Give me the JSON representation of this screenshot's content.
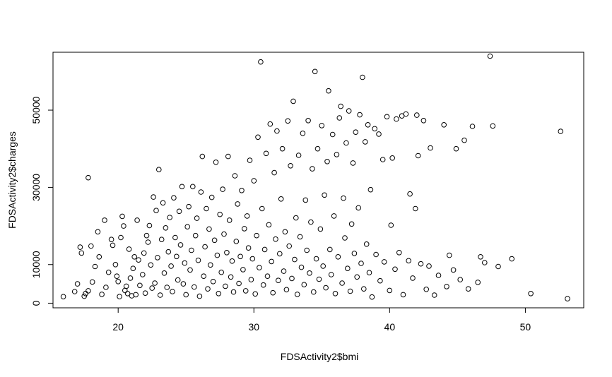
{
  "chart_data": {
    "type": "scatter",
    "title": "",
    "xlabel": "FDSActivity2$bmi",
    "ylabel": "FDSActivity2$charges",
    "xlim": [
      15.2,
      54.3
    ],
    "ylim": [
      -1200,
      65000
    ],
    "x_ticks": [
      20,
      30,
      40,
      50
    ],
    "y_ticks": [
      0,
      10000,
      30000,
      50000
    ],
    "x_tick_labels": [
      "20",
      "30",
      "40",
      "50"
    ],
    "y_tick_labels": [
      "0",
      "10000",
      "30000",
      "50000"
    ],
    "marker": "open-circle",
    "grid": false,
    "legend": "none",
    "points": [
      [
        15.96,
        1694
      ],
      [
        16.8,
        3000
      ],
      [
        17.0,
        5000
      ],
      [
        17.2,
        14500
      ],
      [
        17.3,
        13000
      ],
      [
        17.5,
        1800
      ],
      [
        17.6,
        2500
      ],
      [
        17.8,
        3200
      ],
      [
        17.8,
        32500
      ],
      [
        18.0,
        14800
      ],
      [
        18.1,
        5500
      ],
      [
        18.3,
        9500
      ],
      [
        18.5,
        18500
      ],
      [
        18.6,
        12000
      ],
      [
        18.8,
        2300
      ],
      [
        19.0,
        21500
      ],
      [
        19.1,
        4100
      ],
      [
        19.3,
        8000
      ],
      [
        19.5,
        16500
      ],
      [
        19.6,
        15000
      ],
      [
        19.8,
        10000
      ],
      [
        19.9,
        7000
      ],
      [
        20.0,
        5600
      ],
      [
        20.1,
        1700
      ],
      [
        20.2,
        17000
      ],
      [
        20.3,
        22500
      ],
      [
        20.4,
        20000
      ],
      [
        20.5,
        3300
      ],
      [
        20.6,
        4400
      ],
      [
        20.7,
        2500
      ],
      [
        20.8,
        14000
      ],
      [
        20.9,
        6500
      ],
      [
        21.0,
        1900
      ],
      [
        21.1,
        9000
      ],
      [
        21.2,
        12000
      ],
      [
        21.3,
        2200
      ],
      [
        21.4,
        21500
      ],
      [
        21.5,
        11200
      ],
      [
        21.6,
        4600
      ],
      [
        21.8,
        7400
      ],
      [
        21.9,
        13000
      ],
      [
        22.0,
        2600
      ],
      [
        22.1,
        17500
      ],
      [
        22.2,
        15800
      ],
      [
        22.3,
        20100
      ],
      [
        22.4,
        9900
      ],
      [
        22.5,
        3900
      ],
      [
        22.6,
        27500
      ],
      [
        22.7,
        5200
      ],
      [
        22.8,
        24000
      ],
      [
        22.9,
        11800
      ],
      [
        23.0,
        34600
      ],
      [
        23.1,
        2100
      ],
      [
        23.2,
        16500
      ],
      [
        23.3,
        26000
      ],
      [
        23.4,
        7800
      ],
      [
        23.5,
        19500
      ],
      [
        23.6,
        4100
      ],
      [
        23.7,
        13300
      ],
      [
        23.8,
        22200
      ],
      [
        23.9,
        9600
      ],
      [
        24.0,
        3000
      ],
      [
        24.1,
        27300
      ],
      [
        24.2,
        17000
      ],
      [
        24.3,
        12100
      ],
      [
        24.4,
        6000
      ],
      [
        24.5,
        23800
      ],
      [
        24.6,
        15100
      ],
      [
        24.7,
        30200
      ],
      [
        24.8,
        5000
      ],
      [
        24.9,
        10400
      ],
      [
        25.0,
        2200
      ],
      [
        25.1,
        19800
      ],
      [
        25.2,
        25000
      ],
      [
        25.3,
        8600
      ],
      [
        25.4,
        13700
      ],
      [
        25.5,
        30200
      ],
      [
        25.6,
        4200
      ],
      [
        25.7,
        17500
      ],
      [
        25.8,
        22000
      ],
      [
        25.9,
        11100
      ],
      [
        26.0,
        1800
      ],
      [
        26.1,
        28800
      ],
      [
        26.2,
        38000
      ],
      [
        26.3,
        7000
      ],
      [
        26.4,
        14600
      ],
      [
        26.5,
        24500
      ],
      [
        26.6,
        3700
      ],
      [
        26.7,
        19200
      ],
      [
        26.8,
        9900
      ],
      [
        26.9,
        27400
      ],
      [
        27.0,
        5600
      ],
      [
        27.1,
        16300
      ],
      [
        27.2,
        36500
      ],
      [
        27.3,
        12400
      ],
      [
        27.4,
        2500
      ],
      [
        27.5,
        23000
      ],
      [
        27.6,
        8000
      ],
      [
        27.7,
        29500
      ],
      [
        27.8,
        17900
      ],
      [
        27.9,
        4400
      ],
      [
        28.0,
        13100
      ],
      [
        28.1,
        38000
      ],
      [
        28.2,
        21500
      ],
      [
        28.3,
        6800
      ],
      [
        28.4,
        10900
      ],
      [
        28.5,
        2900
      ],
      [
        28.6,
        33000
      ],
      [
        28.7,
        16000
      ],
      [
        28.8,
        25700
      ],
      [
        28.9,
        5100
      ],
      [
        29.0,
        12100
      ],
      [
        29.1,
        29200
      ],
      [
        29.2,
        8700
      ],
      [
        29.3,
        19300
      ],
      [
        29.4,
        3200
      ],
      [
        29.5,
        22600
      ],
      [
        29.6,
        14300
      ],
      [
        29.7,
        37000
      ],
      [
        29.8,
        6100
      ],
      [
        29.9,
        11500
      ],
      [
        30.0,
        31700
      ],
      [
        30.1,
        2400
      ],
      [
        30.2,
        17500
      ],
      [
        30.3,
        43000
      ],
      [
        30.4,
        9200
      ],
      [
        30.5,
        62500
      ],
      [
        30.6,
        24500
      ],
      [
        30.7,
        4700
      ],
      [
        30.8,
        13900
      ],
      [
        30.9,
        38800
      ],
      [
        31.0,
        7000
      ],
      [
        31.1,
        20300
      ],
      [
        31.2,
        46400
      ],
      [
        31.3,
        10800
      ],
      [
        31.4,
        2700
      ],
      [
        31.5,
        33800
      ],
      [
        31.6,
        16600
      ],
      [
        31.7,
        44600
      ],
      [
        31.8,
        5900
      ],
      [
        31.9,
        12800
      ],
      [
        32.0,
        27000
      ],
      [
        32.1,
        40000
      ],
      [
        32.2,
        8300
      ],
      [
        32.3,
        18500
      ],
      [
        32.4,
        3500
      ],
      [
        32.5,
        47200
      ],
      [
        32.6,
        14800
      ],
      [
        32.7,
        35600
      ],
      [
        32.8,
        6400
      ],
      [
        32.9,
        52300
      ],
      [
        33.0,
        11300
      ],
      [
        33.1,
        22100
      ],
      [
        33.2,
        2300
      ],
      [
        33.3,
        38300
      ],
      [
        33.4,
        17200
      ],
      [
        33.5,
        9300
      ],
      [
        33.6,
        44000
      ],
      [
        33.7,
        4800
      ],
      [
        33.8,
        26700
      ],
      [
        33.9,
        13700
      ],
      [
        34.0,
        47300
      ],
      [
        34.1,
        7800
      ],
      [
        34.2,
        21000
      ],
      [
        34.3,
        34800
      ],
      [
        34.4,
        2900
      ],
      [
        34.5,
        60000
      ],
      [
        34.6,
        11500
      ],
      [
        34.7,
        40000
      ],
      [
        34.8,
        6200
      ],
      [
        34.9,
        19200
      ],
      [
        35.0,
        46000
      ],
      [
        35.1,
        9600
      ],
      [
        35.2,
        28000
      ],
      [
        35.3,
        4000
      ],
      [
        35.4,
        36700
      ],
      [
        35.5,
        55000
      ],
      [
        35.6,
        13900
      ],
      [
        35.7,
        7400
      ],
      [
        35.8,
        43700
      ],
      [
        35.9,
        22600
      ],
      [
        36.0,
        2500
      ],
      [
        36.1,
        38500
      ],
      [
        36.2,
        12000
      ],
      [
        36.3,
        48000
      ],
      [
        36.4,
        51000
      ],
      [
        36.5,
        5200
      ],
      [
        36.6,
        27200
      ],
      [
        36.7,
        16900
      ],
      [
        36.8,
        41500
      ],
      [
        36.9,
        9000
      ],
      [
        37.0,
        49800
      ],
      [
        37.1,
        3100
      ],
      [
        37.2,
        20500
      ],
      [
        37.3,
        36300
      ],
      [
        37.4,
        12900
      ],
      [
        37.5,
        44300
      ],
      [
        37.6,
        6800
      ],
      [
        37.7,
        24700
      ],
      [
        37.8,
        48800
      ],
      [
        37.9,
        10300
      ],
      [
        38.0,
        58500
      ],
      [
        38.1,
        3700
      ],
      [
        38.2,
        41800
      ],
      [
        38.3,
        15300
      ],
      [
        38.4,
        46200
      ],
      [
        38.5,
        7900
      ],
      [
        38.6,
        29400
      ],
      [
        38.7,
        1600
      ],
      [
        38.9,
        45200
      ],
      [
        39.0,
        12600
      ],
      [
        39.2,
        43800
      ],
      [
        39.3,
        5800
      ],
      [
        39.5,
        37200
      ],
      [
        39.6,
        10700
      ],
      [
        39.8,
        48300
      ],
      [
        40.0,
        3300
      ],
      [
        40.1,
        20200
      ],
      [
        40.2,
        37600
      ],
      [
        40.4,
        8800
      ],
      [
        40.5,
        47700
      ],
      [
        40.7,
        13100
      ],
      [
        40.9,
        48500
      ],
      [
        41.0,
        2200
      ],
      [
        41.2,
        49000
      ],
      [
        41.4,
        11000
      ],
      [
        41.5,
        28300
      ],
      [
        41.7,
        6500
      ],
      [
        41.9,
        24500
      ],
      [
        42.0,
        48700
      ],
      [
        42.1,
        38200
      ],
      [
        42.3,
        10200
      ],
      [
        42.5,
        47300
      ],
      [
        42.7,
        3600
      ],
      [
        42.9,
        9600
      ],
      [
        43.0,
        40200
      ],
      [
        43.3,
        2100
      ],
      [
        43.6,
        7200
      ],
      [
        44.0,
        46200
      ],
      [
        44.2,
        4300
      ],
      [
        44.4,
        12400
      ],
      [
        44.7,
        8600
      ],
      [
        44.9,
        40000
      ],
      [
        45.2,
        6100
      ],
      [
        45.5,
        42200
      ],
      [
        45.8,
        3700
      ],
      [
        46.1,
        45800
      ],
      [
        46.5,
        5400
      ],
      [
        46.7,
        12000
      ],
      [
        47.0,
        10500
      ],
      [
        47.4,
        64000
      ],
      [
        47.6,
        45900
      ],
      [
        48.0,
        9500
      ],
      [
        49.0,
        11500
      ],
      [
        50.4,
        2500
      ],
      [
        52.6,
        44500
      ],
      [
        53.1,
        1163
      ]
    ]
  }
}
